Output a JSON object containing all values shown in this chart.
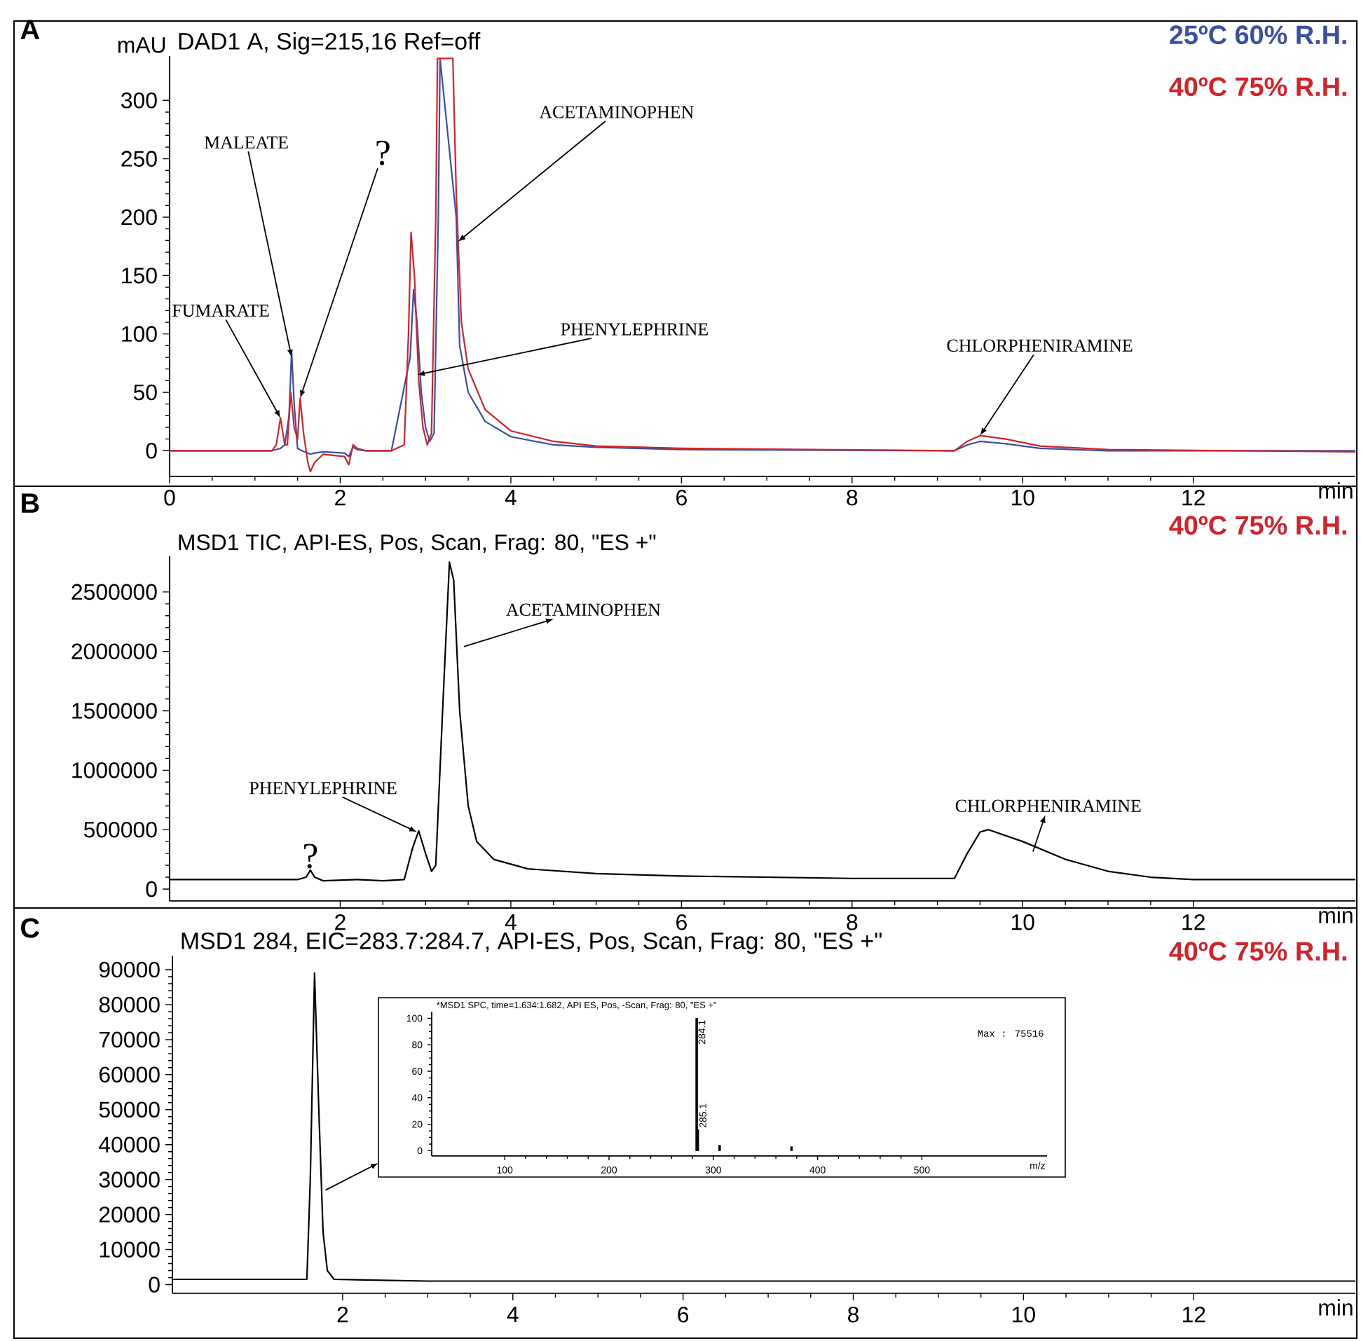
{
  "chart_data": [
    {
      "type": "line",
      "title": "DAD1 A, Sig=215,16 Ref=off",
      "ylabel": "mAU",
      "xlabel": "min",
      "xlim": [
        0,
        13.9
      ],
      "ylim": [
        -22,
        338
      ],
      "xticks": [
        0,
        2,
        4,
        6,
        8,
        10,
        12
      ],
      "yticks": [
        0,
        50,
        100,
        150,
        200,
        250,
        300
      ],
      "legend": "top right",
      "series": [
        {
          "name": "25ºC   60% R.H.",
          "color": "#3b4ea6",
          "x": [
            0,
            1.2,
            1.3,
            1.35,
            1.4,
            1.43,
            1.46,
            1.5,
            1.55,
            1.65,
            1.7,
            1.8,
            2.05,
            2.1,
            2.15,
            2.2,
            2.3,
            2.6,
            2.75,
            2.82,
            2.86,
            2.9,
            2.95,
            3.0,
            3.05,
            3.1,
            3.15,
            3.17,
            3.32,
            3.36,
            3.4,
            3.5,
            3.7,
            4.0,
            4.5,
            5,
            6,
            9.2,
            9.35,
            9.5,
            9.8,
            10.2,
            11,
            13.9
          ],
          "values": [
            0,
            0,
            2,
            5,
            30,
            85,
            40,
            2,
            0,
            -3,
            -2,
            -1,
            -2,
            -5,
            3,
            1,
            0,
            0,
            null,
            80,
            138,
            110,
            50,
            20,
            8,
            15,
            200,
            336,
            null,
            200,
            90,
            50,
            25,
            12,
            5,
            3,
            1,
            0,
            5,
            8,
            6,
            2,
            0,
            0
          ]
        },
        {
          "name": "40ºC   75% R.H.",
          "color": "#d2232a",
          "x": [
            0,
            1.2,
            1.25,
            1.3,
            1.35,
            1.38,
            1.42,
            1.46,
            1.5,
            1.53,
            1.57,
            1.62,
            1.65,
            1.7,
            1.8,
            2.05,
            2.1,
            2.15,
            2.2,
            2.3,
            2.6,
            2.75,
            2.8,
            2.83,
            2.87,
            2.92,
            2.97,
            3.02,
            3.07,
            3.12,
            3.14,
            3.32,
            3.36,
            3.42,
            3.5,
            3.7,
            4,
            4.5,
            5,
            6,
            9.2,
            9.35,
            9.5,
            9.8,
            10.2,
            11,
            13.9
          ],
          "values": [
            0,
            0,
            5,
            28,
            5,
            5,
            50,
            20,
            10,
            45,
            15,
            -10,
            -18,
            -10,
            -3,
            -5,
            -12,
            5,
            2,
            0,
            0,
            5,
            100,
            187,
            150,
            60,
            20,
            5,
            15,
            200,
            336,
            336,
            220,
            110,
            70,
            35,
            17,
            8,
            4,
            2,
            0,
            8,
            13,
            10,
            4,
            1,
            -1
          ]
        }
      ],
      "annotations": [
        "A",
        {
          "text": "MALEATE",
          "x": 1.43,
          "y": 80
        },
        {
          "text": "?",
          "x": 1.53,
          "y": 45
        },
        {
          "text": "ACETAMINOPHEN",
          "x": 3.38,
          "y": 179
        },
        {
          "text": "FUMARATE",
          "x": 1.3,
          "y": 28
        },
        {
          "text": "PHENYLEPHRINE",
          "x": 2.9,
          "y": 65
        },
        {
          "text": "CHLORPHENIRAMINE",
          "x": 9.5,
          "y": 13
        }
      ]
    },
    {
      "type": "line",
      "title": "MSD1 TIC, API-ES, Pos, Scan, Frag: 80, \"ES +\"",
      "xlabel": "min",
      "xlim": [
        0,
        13.9
      ],
      "ylim": [
        -100000,
        2800000
      ],
      "xticks": [
        2,
        4,
        6,
        8,
        10,
        12
      ],
      "yticks": [
        0,
        500000,
        1000000,
        1500000,
        2000000,
        2500000
      ],
      "series": [
        {
          "color": "#000000",
          "x": [
            0,
            1.5,
            1.6,
            1.65,
            1.7,
            1.8,
            2.2,
            2.5,
            2.75,
            2.85,
            2.92,
            3.0,
            3.07,
            3.12,
            3.2,
            3.28,
            3.33,
            3.4,
            3.5,
            3.6,
            3.8,
            4.2,
            5,
            6,
            8,
            9.2,
            9.35,
            9.5,
            9.6,
            10,
            10.5,
            11,
            11.5,
            12,
            13.9
          ],
          "values": [
            80000,
            80000,
            100000,
            160000,
            100000,
            70000,
            80000,
            70000,
            80000,
            350000,
            490000,
            300000,
            150000,
            200000,
            1500000,
            2750000,
            2600000,
            1500000,
            700000,
            400000,
            250000,
            170000,
            130000,
            110000,
            90000,
            90000,
            300000,
            480000,
            500000,
            400000,
            250000,
            150000,
            100000,
            80000,
            80000
          ]
        }
      ],
      "annotations": [
        "B",
        "40ºC   75% R.H.",
        {
          "text": "?",
          "x": 1.65,
          "y": 160000
        },
        {
          "text": "PHENYLEPHRINE",
          "x": 2.9,
          "y": 480000
        },
        {
          "text": "ACETAMINOPHEN",
          "x": 3.45,
          "y": 2040000
        },
        {
          "text": "CHLORPHENIRAMINE",
          "x": 10.12,
          "y": 315000
        }
      ]
    },
    {
      "type": "line",
      "title": "MSD1 284, EIC=283.7:284.7, API-ES, Pos, Scan, Frag: 80, \"ES +\"",
      "xlabel": "min",
      "xlim": [
        0,
        13.9
      ],
      "ylim": [
        -2500,
        94000
      ],
      "xticks": [
        2,
        4,
        6,
        8,
        10,
        12
      ],
      "yticks": [
        0,
        10000,
        20000,
        30000,
        40000,
        50000,
        60000,
        70000,
        80000,
        90000
      ],
      "series": [
        {
          "color": "#000000",
          "x": [
            0,
            1.55,
            1.58,
            1.62,
            1.67,
            1.72,
            1.77,
            1.82,
            1.9,
            3,
            6,
            10,
            13.9
          ],
          "values": [
            1500,
            1500,
            1500,
            30000,
            89000,
            50000,
            15000,
            4000,
            1500,
            1000,
            1000,
            1000,
            1000
          ]
        }
      ],
      "annotations": [
        "C",
        "40ºC   75% R.H."
      ]
    },
    {
      "type": "bar",
      "title": "*MSD1 SPC, time=1.634:1.682, API ES, Pos, -Scan, Frag: 80, \"ES +\"",
      "xlabel": "m/z",
      "x": [
        284.1,
        285.1,
        306,
        375
      ],
      "values": [
        100,
        16,
        4,
        3
      ],
      "color": "#000000",
      "xlim": [
        30,
        620
      ],
      "ylim": [
        -4,
        105
      ],
      "xticks": [
        100,
        200,
        300,
        400,
        500
      ],
      "yticks": [
        0,
        20,
        40,
        60,
        80,
        100
      ],
      "annotations": [
        "Max  : 75516",
        {
          "text": "284.1",
          "x": 284.1,
          "y": 100
        },
        {
          "text": "285.1",
          "x": 285.1,
          "y": 16
        }
      ]
    }
  ]
}
